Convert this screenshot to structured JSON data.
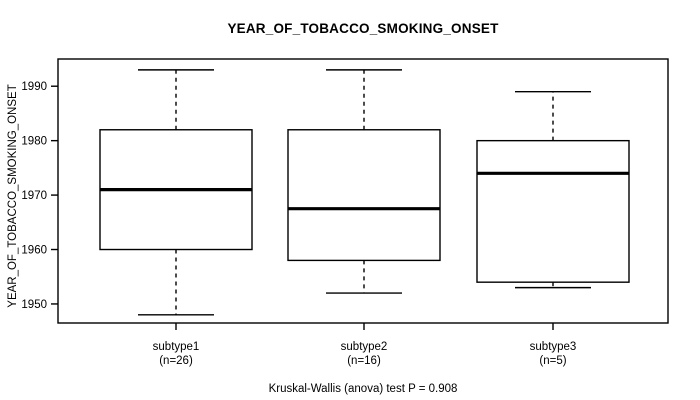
{
  "chart_data": {
    "type": "boxplot",
    "title": "YEAR_OF_TOBACCO_SMOKING_ONSET",
    "ylabel": "YEAR_OF_TOBACCO_SMOKING_ONSET",
    "xlabel": "",
    "y_ticks": [
      1950,
      1960,
      1970,
      1980,
      1990
    ],
    "ylim": [
      1946.5,
      1995
    ],
    "grid": false,
    "legend": "none",
    "categories": [
      "subtype1",
      "subtype2",
      "subtype3"
    ],
    "groups": [
      {
        "label": "subtype1",
        "n": 26,
        "n_label": "(n=26)",
        "whisker_low": 1948,
        "q1": 1960,
        "median": 1971,
        "q3": 1982,
        "whisker_high": 1993
      },
      {
        "label": "subtype2",
        "n": 16,
        "n_label": "(n=16)",
        "whisker_low": 1952,
        "q1": 1958,
        "median": 1967.5,
        "q3": 1982,
        "whisker_high": 1993
      },
      {
        "label": "subtype3",
        "n": 5,
        "n_label": "(n=5)",
        "whisker_low": 1953,
        "q1": 1954,
        "median": 1974,
        "q3": 1980,
        "whisker_high": 1989
      }
    ],
    "annotation": "Kruskal-Wallis (anova) test P = 0.908",
    "colors": {
      "line": "#000000",
      "box_fill": "#ffffff",
      "background": "#ffffff"
    }
  }
}
